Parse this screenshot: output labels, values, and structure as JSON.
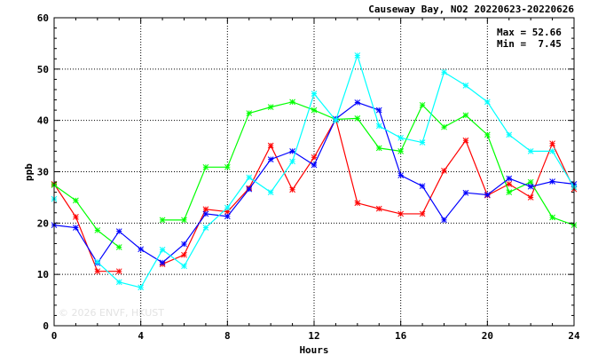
{
  "chart_data": {
    "type": "line",
    "title": "Causeway Bay, NO2 20220623-20220626",
    "xlabel": "Hours",
    "ylabel": "ppb",
    "xlim": [
      0,
      24
    ],
    "ylim": [
      0,
      60
    ],
    "xticks": [
      "0",
      "4",
      "8",
      "12",
      "16",
      "20",
      "24"
    ],
    "yticks": [
      "0",
      "10",
      "20",
      "30",
      "40",
      "50",
      "60"
    ],
    "grid": true,
    "stats": {
      "max_label": "Max = 52.66",
      "min_label": "Min =  7.45"
    },
    "watermark": "© 2026  ENVF, HKUST",
    "x": [
      0,
      1,
      2,
      3,
      4,
      5,
      6,
      7,
      8,
      9,
      10,
      11,
      12,
      13,
      14,
      15,
      16,
      17,
      18,
      19,
      20,
      21,
      22,
      23,
      24
    ],
    "series": [
      {
        "color": "#ff0000",
        "values": [
          27.6,
          21.2,
          10.6,
          10.6,
          null,
          12.0,
          13.8,
          22.7,
          22.2,
          26.8,
          35.1,
          26.5,
          32.8,
          40.3,
          23.9,
          22.8,
          21.8,
          21.8,
          30.2,
          36.1,
          25.4,
          27.6,
          25.0,
          35.5,
          26.6
        ]
      },
      {
        "color": "#00ff00",
        "values": [
          27.4,
          24.4,
          18.6,
          15.3,
          null,
          20.6,
          20.6,
          30.9,
          30.9,
          41.4,
          42.6,
          43.6,
          42.0,
          40.2,
          40.4,
          34.6,
          34.0,
          43.0,
          38.7,
          41.0,
          37.2,
          26.0,
          28.0,
          21.1,
          19.6
        ]
      },
      {
        "color": "#0000ff",
        "values": [
          19.6,
          19.1,
          12.2,
          18.4,
          14.9,
          12.3,
          15.9,
          21.8,
          21.3,
          26.6,
          32.4,
          34.0,
          31.3,
          40.3,
          43.5,
          42.0,
          29.3,
          27.2,
          20.6,
          25.9,
          25.5,
          28.7,
          27.1,
          28.1,
          27.6
        ]
      },
      {
        "color": "#00ffff",
        "values": [
          24.7,
          null,
          12.4,
          8.5,
          7.45,
          14.8,
          11.6,
          19.1,
          23.0,
          28.9,
          26.0,
          32.0,
          45.2,
          40.0,
          52.66,
          38.9,
          36.6,
          35.7,
          49.4,
          46.8,
          43.6,
          37.2,
          34.0,
          34.0,
          27.0
        ]
      }
    ]
  }
}
